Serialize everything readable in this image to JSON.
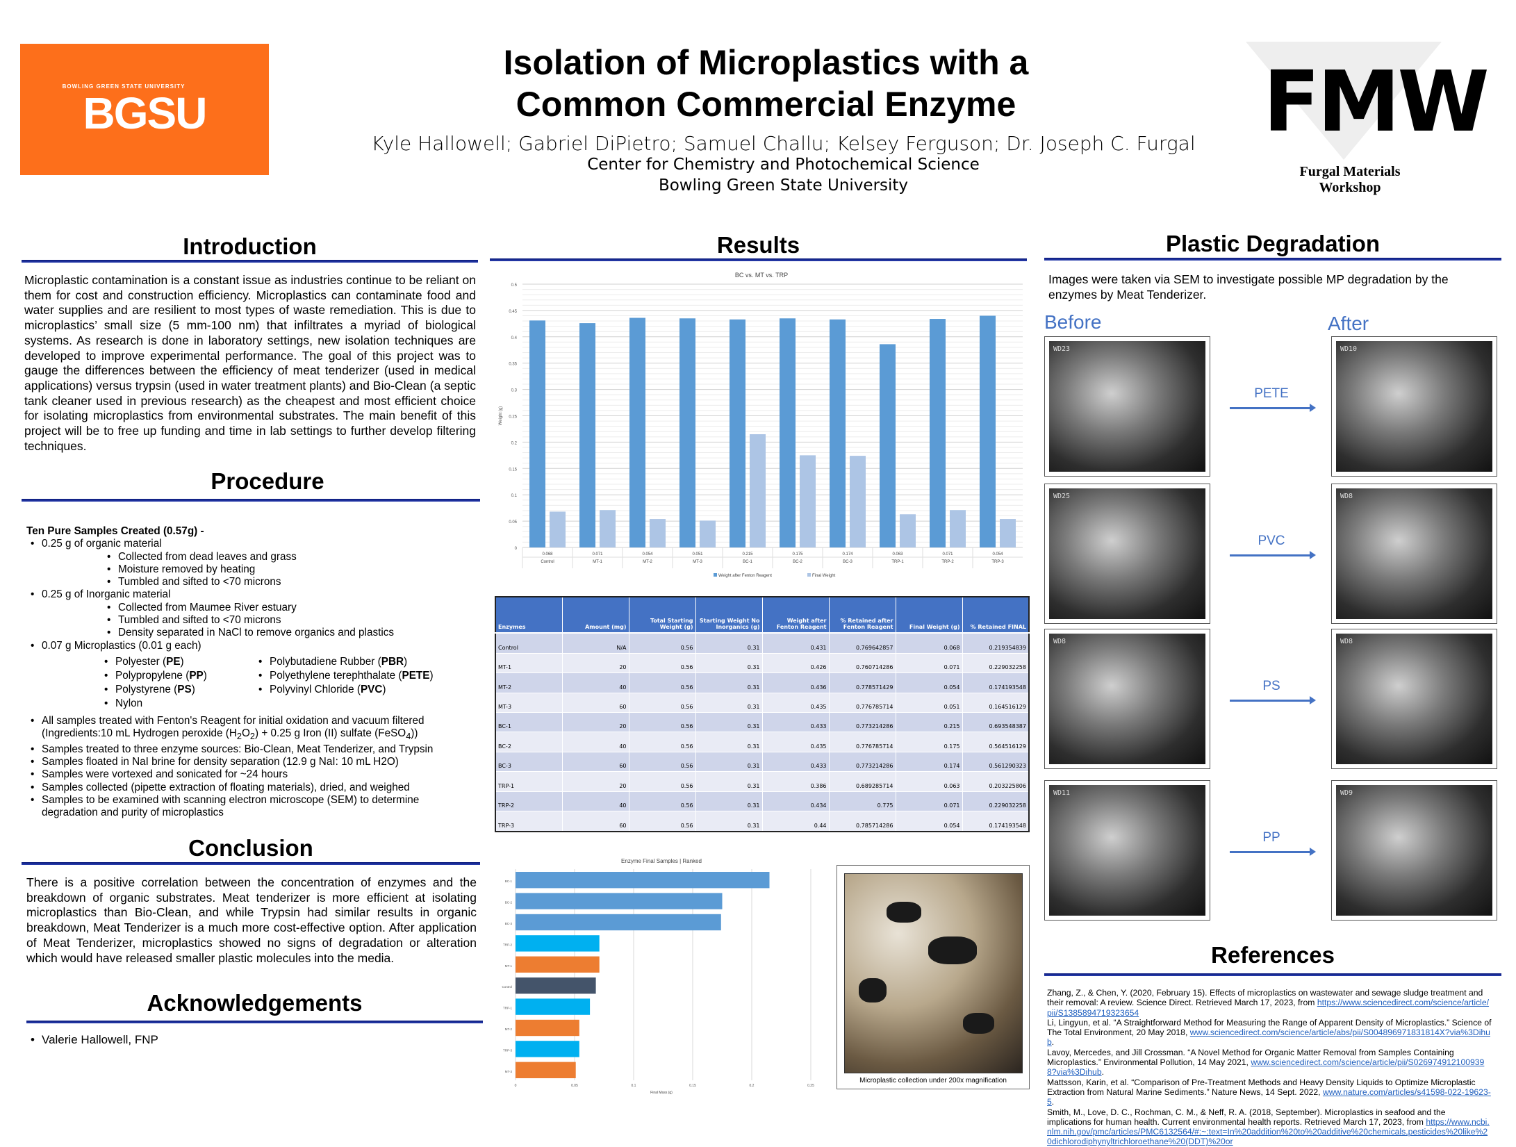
{
  "header": {
    "logo_left": {
      "small": "BOWLING GREEN STATE UNIVERSITY",
      "big": "BGSU"
    },
    "title_line1": "Isolation of Microplastics with a",
    "title_line2": "Common Commercial Enzyme",
    "authors": "Kyle Hallowell;  Gabriel DiPietro; Samuel Challu; Kelsey Ferguson; Dr. Joseph C. Furgal",
    "affiliation1": "Center for Chemistry and Photochemical Science",
    "affiliation2": "Bowling Green State University",
    "logo_right": {
      "letters": "FMW",
      "sub": "Furgal Materials Workshop"
    }
  },
  "introduction": {
    "heading": "Introduction",
    "text": "Microplastic contamination is a constant issue as industries continue to be reliant on them for cost and construction efficiency. Microplastics can contaminate food and water supplies and are resilient to most types of waste remediation. This is due to microplastics’ small size (5 mm-100 nm) that infiltrates a myriad of biological systems. As research is done in laboratory settings, new isolation techniques are developed to improve experimental performance. The goal of this project was to gauge the differences between the efficiency of meat tenderizer (used in medical applications) versus trypsin (used in water treatment plants) and Bio-Clean (a septic tank cleaner used in previous research) as the cheapest and most efficient choice for isolating microplastics from environmental substrates. The main benefit of this project will be to free up funding and time in lab settings to further develop filtering techniques."
  },
  "procedure": {
    "heading": "Procedure",
    "lead": "Ten Pure Samples Created (0.57g) -",
    "organic": {
      "label": "0.25 g of organic material",
      "sub": [
        "Collected from dead leaves and grass",
        "Moisture removed by heating",
        "Tumbled and sifted to <70 microns"
      ]
    },
    "inorganic": {
      "label": "0.25 g of Inorganic material",
      "sub": [
        "Collected from Maumee River estuary",
        "Tumbled and sifted to <70 microns",
        "Density separated in NaCl to remove organics and plastics"
      ]
    },
    "micro": {
      "label": "0.07 g Microplastics (0.01 g each)",
      "col1": [
        {
          "name": "Polyester",
          "abbr": "PE"
        },
        {
          "name": "Polypropylene",
          "abbr": "PP"
        },
        {
          "name": "Polystyrene",
          "abbr": "PS"
        },
        {
          "name": "Nylon",
          "abbr": ""
        }
      ],
      "col2": [
        {
          "name": "Polybutadiene Rubber",
          "abbr": "PBR"
        },
        {
          "name": "Polyethylene terephthalate",
          "abbr": "PETE"
        },
        {
          "name": "Polyvinyl Chloride",
          "abbr": "PVC"
        }
      ]
    },
    "fenton": {
      "line1": "All samples treated with Fenton's Reagent for initial oxidation and vacuum filtered",
      "a": "(Ingredients:10 mL Hydrogen peroxide (H",
      "s1": "2",
      "b": "O",
      "s2": "2",
      "c": ") + 0.25 g Iron (II) sulfate (FeSO",
      "s3": "4",
      "d": "))"
    },
    "steps": [
      "Samples treated to three enzyme sources: Bio-Clean, Meat Tenderizer, and Trypsin",
      "Samples floated in NaI brine for density separation (12.9 g NaI: 10 mL H2O)",
      "Samples were vortexed and sonicated for ~24 hours",
      "Samples collected (pipette extraction of floating materials), dried, and weighed",
      "Samples to be examined with scanning electron microscope (SEM) to determine degradation and purity of microplastics"
    ]
  },
  "conclusion": {
    "heading": "Conclusion",
    "text": "There is a positive correlation between the concentration of enzymes and the breakdown of organic substrates.  Meat tenderizer is more efficient at isolating microplastics than Bio-Clean, and while Trypsin had similar results in organic breakdown, Meat Tenderizer is a much more cost-effective option. After application of Meat Tenderizer, microplastics showed no signs of degradation or alteration which would have released smaller plastic molecules into the media."
  },
  "acknowledgements": {
    "heading": "Acknowledgements",
    "items": [
      "Valerie Hallowell, FNP"
    ]
  },
  "results": {
    "heading": "Results",
    "table": {
      "headers": [
        "Enzymes",
        "Amount (mg)",
        "Total Starting Weight (g)",
        "Starting Weight No Inorganics (g)",
        "Weight after Fenton Reagent",
        "% Retained after Fenton Reagent",
        "Final Weight (g)",
        "% Retained FINAL"
      ],
      "rows": [
        [
          "Control",
          "N/A",
          "0.56",
          "0.31",
          "0.431",
          "0.769642857",
          "0.068",
          "0.219354839"
        ],
        [
          "MT-1",
          "20",
          "0.56",
          "0.31",
          "0.426",
          "0.760714286",
          "0.071",
          "0.229032258"
        ],
        [
          "MT-2",
          "40",
          "0.56",
          "0.31",
          "0.436",
          "0.778571429",
          "0.054",
          "0.174193548"
        ],
        [
          "MT-3",
          "60",
          "0.56",
          "0.31",
          "0.435",
          "0.776785714",
          "0.051",
          "0.164516129"
        ],
        [
          "BC-1",
          "20",
          "0.56",
          "0.31",
          "0.433",
          "0.773214286",
          "0.215",
          "0.693548387"
        ],
        [
          "BC-2",
          "40",
          "0.56",
          "0.31",
          "0.435",
          "0.776785714",
          "0.175",
          "0.564516129"
        ],
        [
          "BC-3",
          "60",
          "0.56",
          "0.31",
          "0.433",
          "0.773214286",
          "0.174",
          "0.561290323"
        ],
        [
          "TRP-1",
          "20",
          "0.56",
          "0.31",
          "0.386",
          "0.689285714",
          "0.063",
          "0.203225806"
        ],
        [
          "TRP-2",
          "40",
          "0.56",
          "0.31",
          "0.434",
          "0.775",
          "0.071",
          "0.229032258"
        ],
        [
          "TRP-3",
          "60",
          "0.56",
          "0.31",
          "0.44",
          "0.785714286",
          "0.054",
          "0.174193548"
        ]
      ]
    },
    "photo_caption": "Microplastic collection under 200x magnification"
  },
  "chart_data": [
    {
      "type": "bar",
      "title": "BC vs. MT vs. TRP",
      "ylabel": "Weight (g)",
      "xlabel": "",
      "ylim": [
        0,
        0.5
      ],
      "yticks": [
        "0",
        "0.05",
        "0.1",
        "0.15",
        "0.2",
        "0.25",
        "0.3",
        "0.35",
        "0.4",
        "0.45",
        "0.5"
      ],
      "grid": true,
      "legend": "bottom",
      "categories": [
        "Control",
        "MT-1",
        "MT-2",
        "MT-3",
        "BC-1",
        "BC-2",
        "BC-3",
        "TRP-1",
        "TRP-2",
        "TRP-3"
      ],
      "table_labels": [
        "0.068",
        "0.071",
        "0.054",
        "0.051",
        "0.215",
        "0.175",
        "0.174",
        "0.063",
        "0.071",
        "0.054"
      ],
      "series": [
        {
          "name": "Weight after Fenton Reagent",
          "color": "#5b9bd5",
          "values": [
            0.431,
            0.426,
            0.436,
            0.435,
            0.433,
            0.435,
            0.433,
            0.386,
            0.434,
            0.44
          ]
        },
        {
          "name": "Final Weight",
          "color": "#adc5e5",
          "values": [
            0.068,
            0.071,
            0.054,
            0.051,
            0.215,
            0.175,
            0.174,
            0.063,
            0.071,
            0.054
          ]
        }
      ]
    },
    {
      "type": "bar",
      "orientation": "horizontal",
      "title": "Enzyme Final Samples | Ranked",
      "xlabel": "Final Mass (g)",
      "xlim": [
        0,
        0.25
      ],
      "xticks": [
        "0",
        "0.05",
        "0.1",
        "0.15",
        "0.2",
        "0.25"
      ],
      "grid": true,
      "categories": [
        "BC-1",
        "BC-2",
        "BC-3",
        "TRP-2",
        "MT-1",
        "Control",
        "TRP-1",
        "MT-2",
        "TRP-3",
        "MT-3"
      ],
      "values": [
        0.215,
        0.175,
        0.174,
        0.071,
        0.071,
        0.068,
        0.063,
        0.054,
        0.054,
        0.051
      ],
      "colors": [
        "#5b9bd5",
        "#5b9bd5",
        "#5b9bd5",
        "#00b0f0",
        "#ed7d31",
        "#44546a",
        "#00b0f0",
        "#ed7d31",
        "#00b0f0",
        "#ed7d31"
      ]
    }
  ],
  "degradation": {
    "heading": "Plastic Degradation",
    "text": "Images were taken via SEM to investigate possible MP degradation by the enzymes by Meat Tenderizer.",
    "before": "Before",
    "after": "After",
    "plastics": [
      "PETE",
      "PVC",
      "PS",
      "PP"
    ],
    "sem_before_labels": [
      "WD23",
      "WD25",
      "WD8",
      "WD11"
    ],
    "sem_after_labels": [
      "WD10",
      "WD8",
      "WD8",
      "WD9"
    ]
  },
  "references": {
    "heading": "References",
    "items": [
      {
        "text": "Zhang, Z., & Chen, Y. (2020, February 15). Effects of microplastics on wastewater and sewage sludge treatment and their removal: A review. Science Direct. Retrieved March 17, 2023, from ",
        "link": "https://www.sciencedirect.com/science/article/pii/S1385894719323654",
        "tail": ""
      },
      {
        "text": "Li, Lingyun, et al. “A Straightforward Method for Measuring the Range of Apparent Density of Microplastics.” Science of The Total Environment, 20 May 2018, ",
        "link": "www.sciencedirect.com/science/article/abs/pii/S004896971831814X?via%3Dihub",
        "tail": "."
      },
      {
        "text": "Lavoy, Mercedes, and Jill Crossman. “A Novel Method for Organic Matter Removal from Samples Containing Microplastics.” Environmental Pollution, 14 May 2021, ",
        "link": "www.sciencedirect.com/science/article/pii/S0269749121009398?via%3Dihub",
        "tail": "."
      },
      {
        "text": "Mattsson, Karin, et al. “Comparison of Pre-Treatment Methods and Heavy Density Liquids to Optimize Microplastic Extraction from Natural Marine Sediments.” Nature News, 14 Sept. 2022, ",
        "link": "www.nature.com/articles/s41598-022-19623-5",
        "tail": "."
      },
      {
        "text": "Smith, M., Love, D. C., Rochman, C. M., & Neff, R. A. (2018, September). Microplastics in seafood and the implications for human health. Current environmental health reports. Retrieved March 17, 2023, from ",
        "link": "https://www.ncbi.nlm.nih.gov/pmc/articles/PMC6132564/#:~:text=In%20addition%20to%20additive%20chemicals,pesticides%20like%20dichlorodiphynyltrichloroethane%20(DDT)%20or",
        "tail": ""
      }
    ]
  }
}
